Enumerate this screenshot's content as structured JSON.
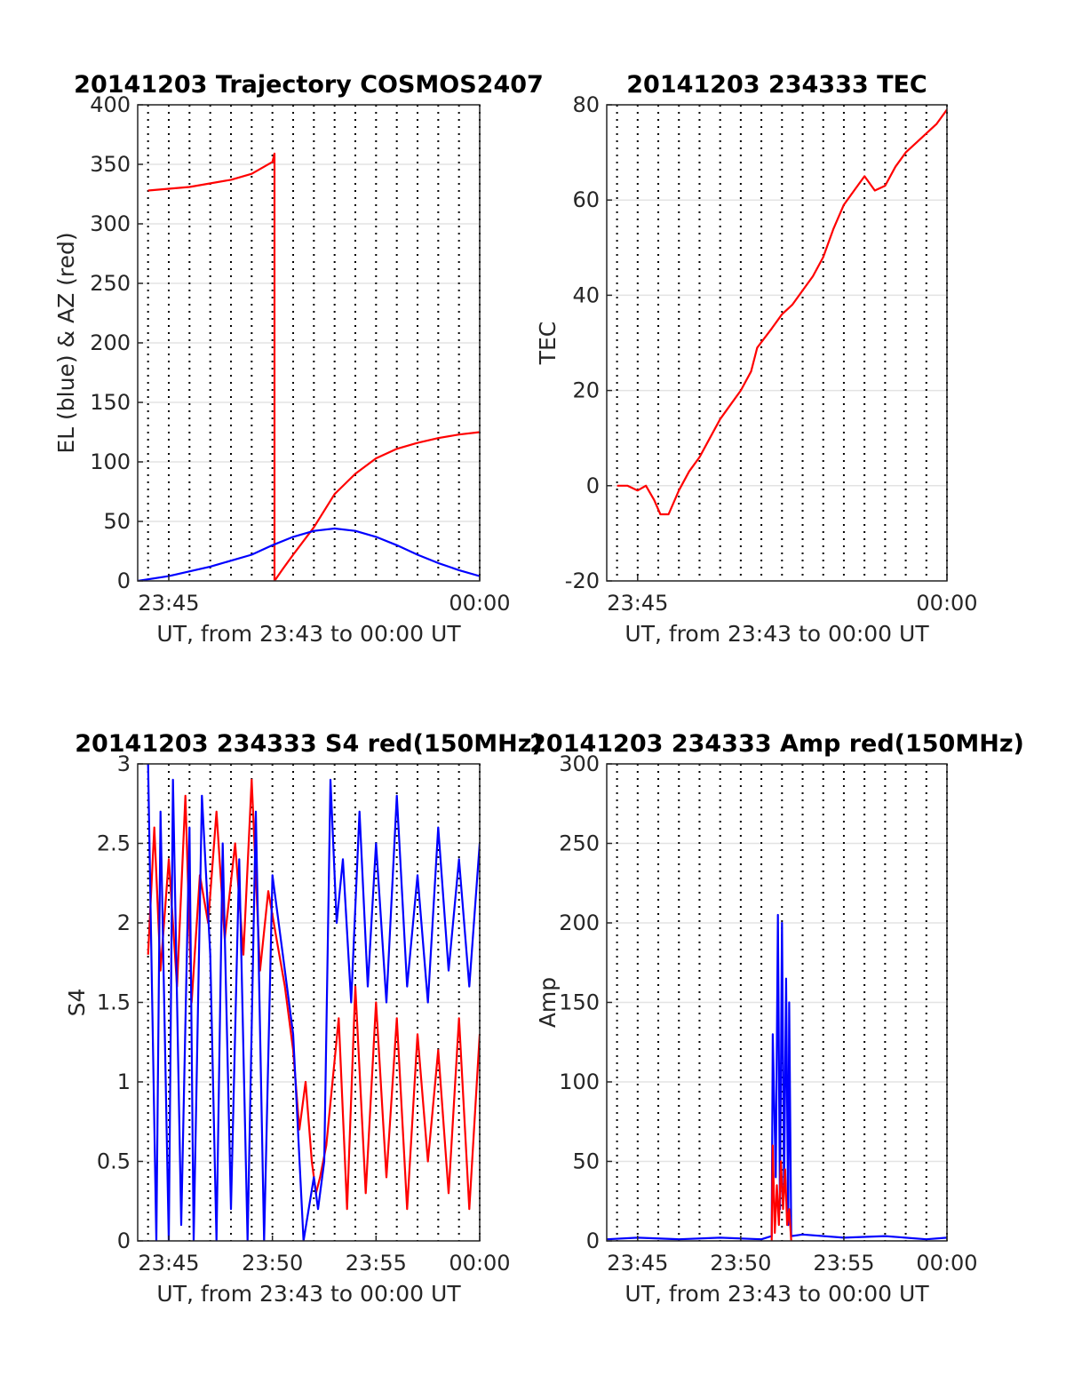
{
  "chart_data": [
    {
      "id": "trajectory",
      "type": "line",
      "title": "20141203 Trajectory COSMOS2407",
      "xlabel": "UT, from 23:43 to 00:00 UT",
      "ylabel": "EL (blue) & AZ (red)",
      "x_unit": "minutes after 23:43 UT",
      "xlim": [
        0.5,
        17
      ],
      "ylim": [
        0,
        400
      ],
      "yticks": [
        0,
        50,
        100,
        150,
        200,
        250,
        300,
        350,
        400
      ],
      "xticks": [
        {
          "x": 2,
          "label": "23:45"
        },
        {
          "x": 17,
          "label": "00:00"
        }
      ],
      "grid": {
        "vertical_dotted_every_minute": true,
        "horizontal": true
      },
      "series": [
        {
          "name": "AZ (red)",
          "color": "#ff0000",
          "x": [
            1.0,
            3.0,
            5.0,
            6.0,
            7.0,
            7.1,
            7.1,
            7.5,
            8.0,
            9.0,
            10.0,
            11.0,
            12.0,
            13.0,
            14.0,
            15.0,
            16.0,
            17.0
          ],
          "y": [
            328,
            331,
            337,
            342,
            352,
            359,
            0,
            10,
            22,
            45,
            73,
            90,
            103,
            111,
            116,
            120,
            123,
            125
          ]
        },
        {
          "name": "EL (blue)",
          "color": "#0000ff",
          "x": [
            0.5,
            2.0,
            4.0,
            6.0,
            7.0,
            8.0,
            9.0,
            10.0,
            11.0,
            12.0,
            13.0,
            14.0,
            15.0,
            16.0,
            17.0
          ],
          "y": [
            0,
            4,
            12,
            22,
            30,
            37,
            42,
            44,
            42,
            37,
            30,
            22,
            15,
            9,
            4
          ]
        }
      ]
    },
    {
      "id": "tec",
      "type": "line",
      "title": "20141203 234333 TEC",
      "xlabel": "UT, from 23:43 to 00:00 UT",
      "ylabel": "TEC",
      "x_unit": "minutes after 23:43 UT",
      "xlim": [
        0.5,
        17
      ],
      "ylim": [
        -20,
        80
      ],
      "yticks": [
        -20,
        0,
        20,
        40,
        60,
        80
      ],
      "xticks": [
        {
          "x": 2,
          "label": "23:45"
        },
        {
          "x": 17,
          "label": "00:00"
        }
      ],
      "grid": {
        "vertical_dotted_every_minute": true,
        "horizontal": true
      },
      "series": [
        {
          "name": "TEC",
          "color": "#ff0000",
          "x": [
            1.0,
            1.5,
            2.0,
            2.4,
            2.8,
            3.1,
            3.5,
            4.0,
            4.5,
            5.0,
            5.5,
            6.0,
            6.5,
            7.0,
            7.5,
            7.8,
            8.5,
            9.0,
            9.5,
            10.0,
            10.5,
            11.0,
            11.5,
            12.0,
            12.5,
            13.0,
            13.5,
            14.0,
            14.5,
            15.0,
            15.5,
            16.0,
            16.5,
            17.0
          ],
          "y": [
            0,
            0,
            -1,
            0,
            -3,
            -6,
            -6,
            -1,
            3,
            6,
            10,
            14,
            17,
            20,
            24,
            29,
            33,
            36,
            38,
            41,
            44,
            48,
            54,
            59,
            62,
            65,
            62,
            63,
            67,
            70,
            72,
            74,
            76,
            79
          ]
        }
      ]
    },
    {
      "id": "s4",
      "type": "line",
      "title": "20141203 234333 S4 red(150MHz)",
      "xlabel": "UT, from 23:43 to 00:00 UT",
      "ylabel": "S4",
      "x_unit": "minutes after 23:43 UT",
      "xlim": [
        0.5,
        17
      ],
      "ylim": [
        0,
        3
      ],
      "yticks": [
        0,
        0.5,
        1,
        1.5,
        2,
        2.5,
        3
      ],
      "xticks": [
        {
          "x": 2,
          "label": "23:45"
        },
        {
          "x": 7,
          "label": "23:50"
        },
        {
          "x": 12,
          "label": "23:55"
        },
        {
          "x": 17,
          "label": "00:00"
        }
      ],
      "grid": {
        "vertical_dotted_every_minute": true,
        "horizontal": true
      },
      "series": [
        {
          "name": "red",
          "color": "#ff0000",
          "x": [
            1.0,
            1.3,
            1.6,
            2.0,
            2.4,
            2.8,
            3.1,
            3.5,
            3.9,
            4.3,
            4.7,
            5.2,
            5.6,
            6.0,
            6.4,
            6.8,
            7.2,
            7.6,
            8.0,
            8.3,
            8.6,
            8.9,
            9.1,
            9.3,
            9.6,
            9.9,
            10.2,
            10.6,
            11.0,
            11.5,
            12.0,
            12.5,
            13.0,
            13.5,
            14.0,
            14.5,
            15.0,
            15.5,
            16.0,
            16.5,
            17.0
          ],
          "y": [
            1.8,
            2.6,
            1.7,
            2.4,
            1.6,
            2.8,
            1.5,
            2.3,
            2.0,
            2.7,
            1.9,
            2.5,
            1.8,
            2.9,
            1.7,
            2.2,
            1.9,
            1.6,
            1.2,
            0.7,
            1.0,
            0.5,
            0.3,
            0.4,
            0.6,
            1.0,
            1.4,
            0.2,
            1.6,
            0.3,
            1.5,
            0.4,
            1.4,
            0.2,
            1.3,
            0.5,
            1.2,
            0.3,
            1.4,
            0.2,
            1.3
          ]
        },
        {
          "name": "blue",
          "color": "#0000ff",
          "x": [
            1.0,
            1.4,
            1.6,
            2.0,
            2.2,
            2.6,
            3.0,
            3.2,
            3.6,
            4.0,
            4.3,
            4.6,
            5.0,
            5.4,
            5.8,
            6.2,
            6.6,
            7.0,
            7.3,
            7.6,
            8.0,
            8.5,
            9.0,
            9.2,
            9.5,
            9.8,
            10.1,
            10.4,
            10.8,
            11.2,
            11.6,
            12.0,
            12.5,
            13.0,
            13.5,
            14.0,
            14.5,
            15.0,
            15.5,
            16.0,
            16.5,
            17.0
          ],
          "y": [
            3.0,
            0.0,
            2.7,
            0.0,
            2.9,
            0.1,
            2.6,
            0.0,
            2.8,
            1.8,
            0.0,
            2.5,
            0.2,
            2.4,
            0.0,
            2.7,
            0.0,
            2.3,
            2.0,
            1.7,
            1.3,
            0.0,
            0.4,
            0.2,
            0.5,
            2.9,
            2.0,
            2.4,
            1.5,
            2.7,
            1.6,
            2.5,
            1.5,
            2.8,
            1.6,
            2.3,
            1.5,
            2.6,
            1.7,
            2.4,
            1.6,
            2.5
          ]
        }
      ]
    },
    {
      "id": "amp",
      "type": "line",
      "title": "20141203 234333 Amp red(150MHz)",
      "xlabel": "UT, from 23:43 to 00:00 UT",
      "ylabel": "Amp",
      "x_unit": "minutes after 23:43 UT",
      "xlim": [
        0.5,
        17
      ],
      "ylim": [
        0,
        300
      ],
      "yticks": [
        0,
        50,
        100,
        150,
        200,
        250,
        300
      ],
      "xticks": [
        {
          "x": 2,
          "label": "23:45"
        },
        {
          "x": 7,
          "label": "23:50"
        },
        {
          "x": 12,
          "label": "23:55"
        },
        {
          "x": 17,
          "label": "00:00"
        }
      ],
      "grid": {
        "vertical_dotted_every_minute": true,
        "horizontal": true
      },
      "series": [
        {
          "name": "blue",
          "color": "#0000ff",
          "x": [
            0.5,
            2.0,
            4.0,
            6.0,
            8.0,
            8.5,
            8.55,
            8.7,
            8.8,
            8.9,
            9.0,
            9.1,
            9.2,
            9.3,
            9.35,
            9.45,
            10.0,
            12.0,
            14.0,
            16.0,
            17.0
          ],
          "y": [
            1,
            2,
            1,
            2,
            1,
            3,
            130,
            40,
            205,
            20,
            200,
            30,
            165,
            10,
            150,
            3,
            4,
            2,
            3,
            1,
            2
          ]
        },
        {
          "name": "red",
          "color": "#ff0000",
          "x": [
            8.5,
            8.55,
            8.65,
            8.75,
            8.85,
            8.95,
            9.05,
            9.15,
            9.25,
            9.35,
            9.45
          ],
          "y": [
            0,
            60,
            5,
            35,
            10,
            50,
            20,
            45,
            10,
            20,
            0
          ]
        }
      ]
    }
  ]
}
